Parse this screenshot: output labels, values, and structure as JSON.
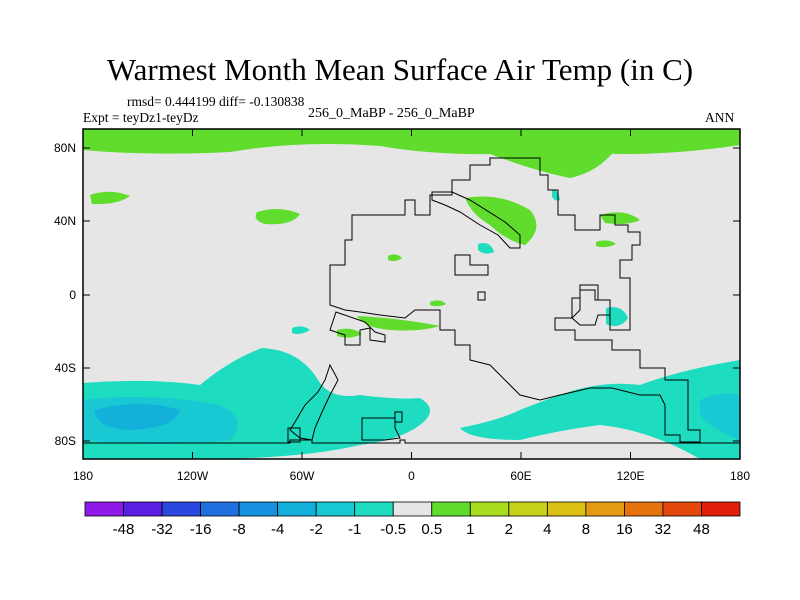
{
  "title": "Warmest Month Mean Surface Air Temp (in C)",
  "stats": "rmsd= 0.444199 diff= -0.130838",
  "expt": "Expt = teyDz1-teyDz",
  "period": "256_0_MaBP - 256_0_MaBP",
  "season": "ANN",
  "axes": {
    "x_ticks": [
      "180",
      "120W",
      "60W",
      "0",
      "60E",
      "120E",
      "180"
    ],
    "y_ticks": [
      "80N",
      "40N",
      "0",
      "40S",
      "80S"
    ]
  },
  "colorbar": {
    "labels": [
      "-48",
      "-32",
      "-16",
      "-8",
      "-4",
      "-2",
      "-1",
      "-0.5",
      "0.5",
      "1",
      "2",
      "4",
      "8",
      "16",
      "32",
      "48"
    ],
    "colors": [
      "#8f19e8",
      "#5a1ee3",
      "#2a48df",
      "#1f6fe0",
      "#1691e0",
      "#12b0da",
      "#18c8d2",
      "#1ddcc0",
      "#e6e6e6",
      "#5fdc2c",
      "#a8dc1e",
      "#c8d21a",
      "#dcc014",
      "#e49a12",
      "#e6720e",
      "#e4480c",
      "#e01e0a"
    ]
  }
}
